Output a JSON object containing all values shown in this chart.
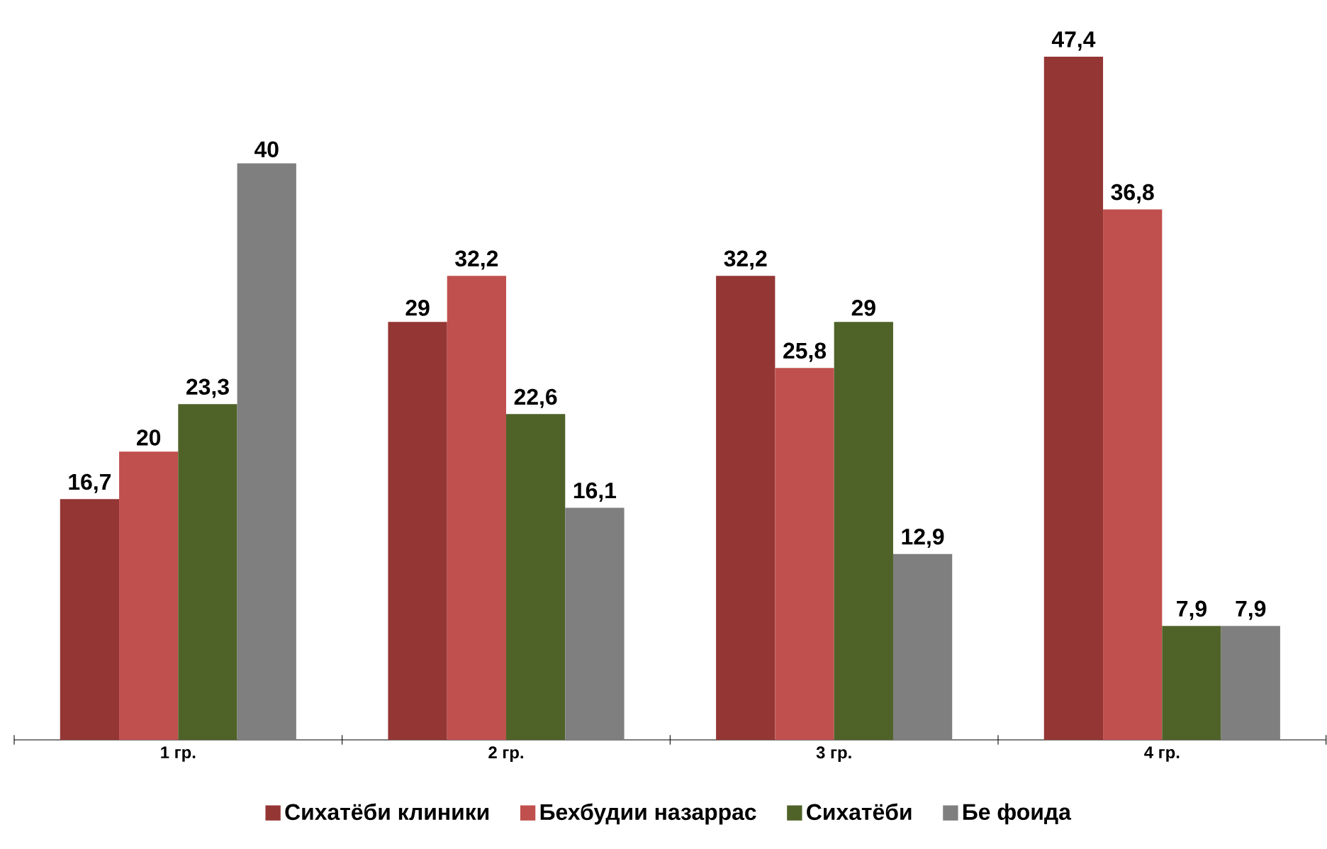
{
  "chart_data": {
    "type": "bar",
    "categories": [
      "1 гр.",
      "2 гр.",
      "3 гр.",
      "4 гр."
    ],
    "series": [
      {
        "name": "Сихатёби клиники",
        "color": "#943634",
        "values": [
          16.7,
          29,
          32.2,
          47.4
        ],
        "value_labels": [
          "16,7",
          "29",
          "32,2",
          "47,4"
        ]
      },
      {
        "name": "Бехбудии назаррас",
        "color": "#c0504d",
        "values": [
          20,
          32.2,
          25.8,
          36.8
        ],
        "value_labels": [
          "20",
          "32,2",
          "25,8",
          "36,8"
        ]
      },
      {
        "name": "Сихатёби",
        "color": "#4f6228",
        "values": [
          23.3,
          22.6,
          29,
          7.9
        ],
        "value_labels": [
          "23,3",
          "22,6",
          "29",
          "7,9"
        ]
      },
      {
        "name": "Бе фоида",
        "color": "#7f7f7f",
        "values": [
          40,
          16.1,
          12.9,
          7.9
        ],
        "value_labels": [
          "40",
          "16,1",
          "12,9",
          "7,9"
        ]
      }
    ],
    "legend": "bottom"
  }
}
